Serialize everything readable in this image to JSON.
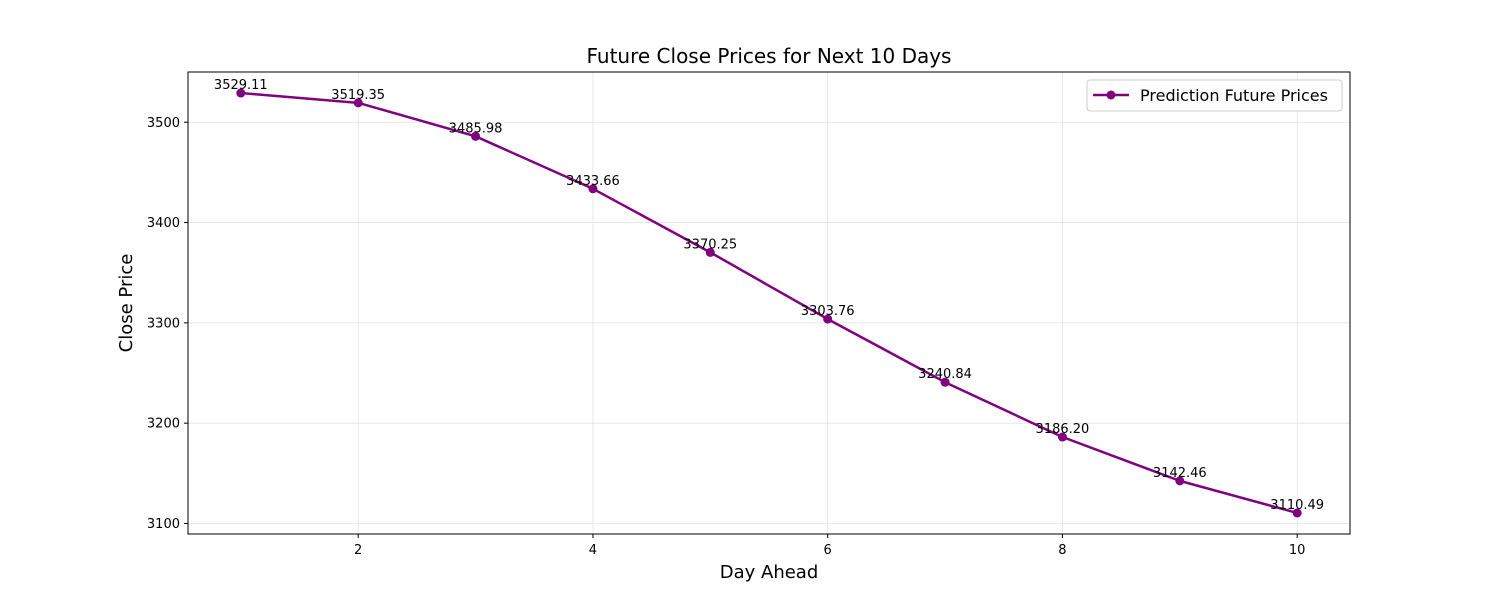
{
  "chart_data": {
    "type": "line",
    "title": "Future Close Prices for Next 10 Days",
    "xlabel": "Day Ahead",
    "ylabel": "Close Price",
    "xlim": [
      0.55,
      10.45
    ],
    "ylim": [
      3089.5,
      3550.1
    ],
    "xticks": [
      2,
      4,
      6,
      8,
      10
    ],
    "yticks": [
      3100,
      3200,
      3300,
      3400,
      3500
    ],
    "grid": true,
    "legend_position": "top-right",
    "series": [
      {
        "name": "Prediction Future Prices",
        "color": "#800080",
        "marker": "circle",
        "x": [
          1,
          2,
          3,
          4,
          5,
          6,
          7,
          8,
          9,
          10
        ],
        "values": [
          3529.11,
          3519.35,
          3485.98,
          3433.66,
          3370.25,
          3303.76,
          3240.84,
          3186.2,
          3142.46,
          3110.49
        ],
        "labels": [
          "3529.11",
          "3519.35",
          "3485.98",
          "3433.66",
          "3370.25",
          "3303.76",
          "3240.84",
          "3186.20",
          "3142.46",
          "3110.49"
        ]
      }
    ]
  }
}
